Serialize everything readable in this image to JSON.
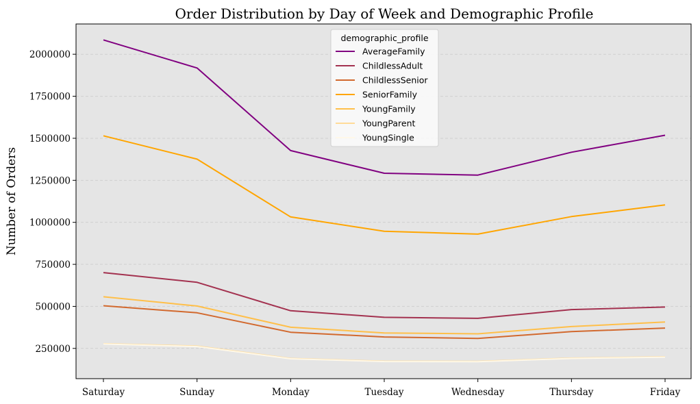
{
  "chart_data": {
    "type": "line",
    "title": "Order Distribution by Day of Week and Demographic Profile",
    "xlabel": "",
    "ylabel": "Number of Orders",
    "categories": [
      "Saturday",
      "Sunday",
      "Monday",
      "Tuesday",
      "Wednesday",
      "Thursday",
      "Friday"
    ],
    "ylim": [
      70000,
      2180000
    ],
    "yticks": [
      250000,
      500000,
      750000,
      1000000,
      1250000,
      1500000,
      1750000,
      2000000
    ],
    "grid": true,
    "legend_title": "demographic_profile",
    "legend_position": "top-center",
    "background": "#e5e5e5",
    "series": [
      {
        "name": "AverageFamily",
        "color": "#800080",
        "values": [
          2085000,
          1918000,
          1427000,
          1292000,
          1281000,
          1417000,
          1518000
        ]
      },
      {
        "name": "ChildlessAdult",
        "color": "#a3314f",
        "values": [
          701000,
          643000,
          474000,
          435000,
          429000,
          481000,
          496000
        ]
      },
      {
        "name": "ChildlessSenior",
        "color": "#d2692e",
        "values": [
          504000,
          462000,
          346000,
          318000,
          309000,
          350000,
          371000
        ]
      },
      {
        "name": "SeniorFamily",
        "color": "#ffa500",
        "values": [
          1515000,
          1376000,
          1032000,
          947000,
          930000,
          1034000,
          1104000
        ]
      },
      {
        "name": "YoungFamily",
        "color": "#ffbf49",
        "values": [
          557000,
          502000,
          376000,
          342000,
          337000,
          380000,
          407000
        ]
      },
      {
        "name": "YoungParent",
        "color": "#ffdb98",
        "values": [
          278000,
          264000,
          190000,
          174000,
          173000,
          192000,
          200000
        ]
      },
      {
        "name": "YoungSingle",
        "color": "#fff8e8",
        "values": [
          276000,
          261000,
          188000,
          172000,
          171000,
          190000,
          198000
        ]
      }
    ]
  }
}
